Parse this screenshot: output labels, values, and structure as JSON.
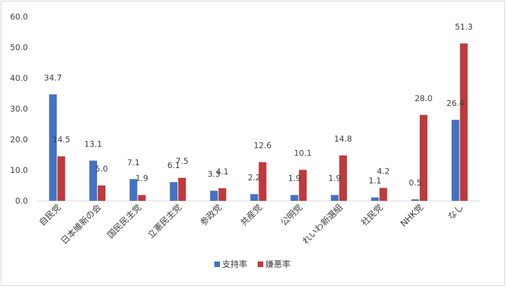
{
  "chart_data": {
    "type": "bar",
    "categories": [
      "自民党",
      "日本維新の会",
      "国民民主党",
      "立憲民主党",
      "参政党",
      "共産党",
      "公明党",
      "れいわ新選組",
      "社民党",
      "NHK党",
      "なし"
    ],
    "series": [
      {
        "name": "支持率",
        "color": "#4472c4",
        "values": [
          34.7,
          13.1,
          7.1,
          6.1,
          3.3,
          2.2,
          1.9,
          1.9,
          1.1,
          0.5,
          26.4
        ]
      },
      {
        "name": "嫌悪率",
        "color": "#c0393b",
        "values": [
          14.5,
          5.0,
          1.9,
          7.5,
          4.1,
          12.6,
          10.1,
          14.8,
          4.2,
          28.0,
          51.3
        ]
      }
    ],
    "data_labels": [
      [
        "34.7",
        "13.1",
        "7.1",
        "6.1",
        "3.3",
        "2.2",
        "1.9",
        "1.9",
        "1.1",
        "0.5",
        "26.4"
      ],
      [
        "14.5",
        "5.0",
        "1.9",
        "7.5",
        "4.1",
        "12.6",
        "10.1",
        "14.8",
        "4.2",
        "28.0",
        "51.3"
      ]
    ],
    "yticks": [
      "0.0",
      "10.0",
      "20.0",
      "30.0",
      "40.0",
      "50.0",
      "60.0"
    ],
    "ylim": [
      0,
      60
    ],
    "grid": false,
    "legend_position": "bottom"
  }
}
